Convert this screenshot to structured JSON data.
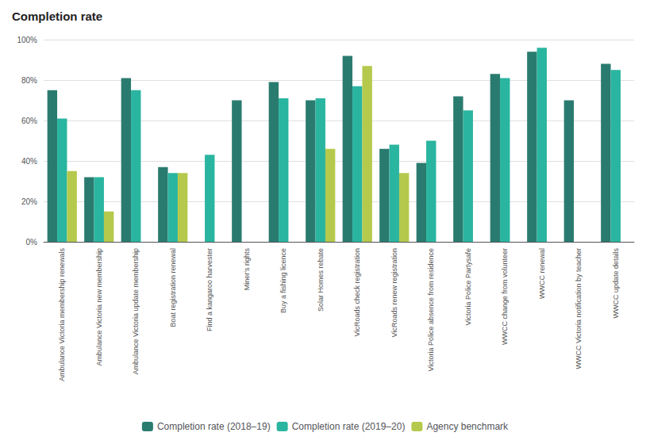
{
  "chart_data": {
    "type": "bar",
    "title": "Completion rate",
    "categories": [
      "Ambulance Victoria membership renewals",
      "Ambulance Victoria new membership",
      "Ambulance Victoria update membership",
      "Boat registration renewal",
      "Find a kangaroo harvester",
      "Miner's rights",
      "Buy a fishing licence",
      "Solar Homes rebate",
      "VicRoads check registration",
      "VicRoads renew registration",
      "Victoria Police absence from residence",
      "Victoria Police Partysafe",
      "WWCC change from volunteer",
      "WWCC renewal",
      "WWCC Victoria notification by teacher",
      "WWCC update details"
    ],
    "series": [
      {
        "name": "Completion rate (2018–19)",
        "color": "#2a7b6f",
        "values": [
          75,
          32,
          81,
          37,
          null,
          70,
          79,
          70,
          92,
          46,
          39,
          72,
          83,
          94,
          70,
          88
        ]
      },
      {
        "name": "Completion rate (2019–20)",
        "color": "#2ab5a0",
        "values": [
          61,
          32,
          75,
          34,
          43,
          null,
          71,
          71,
          77,
          48,
          50,
          65,
          81,
          96,
          null,
          85
        ]
      },
      {
        "name": "Agency benchmark",
        "color": "#b5c94c",
        "values": [
          35,
          15,
          null,
          34,
          null,
          null,
          null,
          46,
          87,
          34,
          null,
          null,
          null,
          null,
          null,
          null
        ]
      }
    ],
    "ylim": [
      0,
      100
    ],
    "yticks": [
      {
        "value": 0,
        "label": "0%"
      },
      {
        "value": 20,
        "label": "20%"
      },
      {
        "value": 40,
        "label": "40%"
      },
      {
        "value": 60,
        "label": "60%"
      },
      {
        "value": 80,
        "label": "80%"
      },
      {
        "value": 100,
        "label": "100%"
      }
    ],
    "grid": true,
    "legend": "bottom"
  }
}
